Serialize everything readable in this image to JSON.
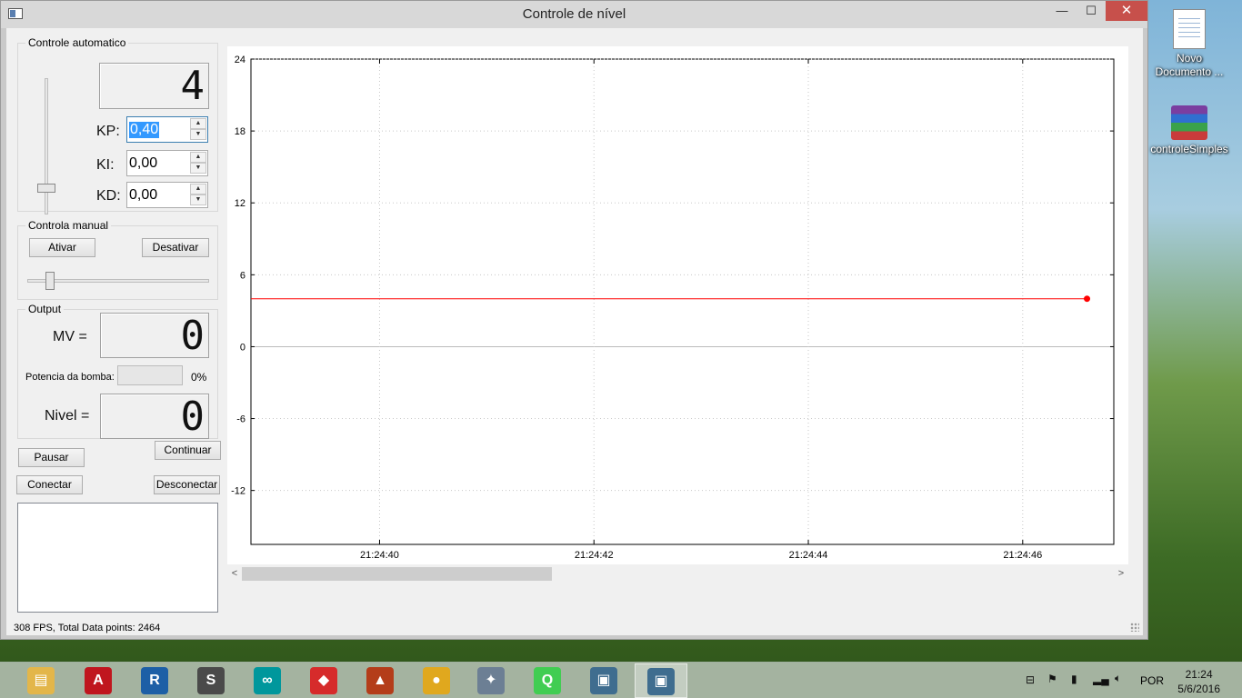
{
  "window": {
    "title": "Controle de nível",
    "minimize": "—",
    "maximize": "☐",
    "close": "✕"
  },
  "auto": {
    "title": "Controle automatico",
    "setpoint_display": "4",
    "kp_label": "KP:",
    "kp_value": "0,40",
    "ki_label": "KI:",
    "ki_value": "0,00",
    "kd_label": "KD:",
    "kd_value": "0,00"
  },
  "manual": {
    "title": "Controla manual",
    "activate": "Ativar",
    "deactivate": "Desativar"
  },
  "output": {
    "title": "Output",
    "mv_label": "MV =",
    "mv_value": "0",
    "pump_label": "Potencia da bomba:",
    "pump_percent": "0%",
    "level_label": "Nivel =",
    "level_value": "0"
  },
  "buttons": {
    "pause": "Pausar",
    "continue": "Continuar",
    "connect": "Conectar",
    "disconnect": "Desconectar"
  },
  "status": "308 FPS, Total Data points: 2464",
  "chart_data": {
    "type": "line",
    "y_ticks": [
      24,
      18,
      12,
      6,
      0,
      -6,
      -12
    ],
    "ylim": [
      -16.5,
      24
    ],
    "x_ticks": [
      "21:24:40",
      "21:24:42",
      "21:24:44",
      "21:24:46"
    ],
    "series": [
      {
        "color": "#ff0000",
        "x_range": [
          "21:24:38.8",
          "21:24:46.6"
        ],
        "y": 4
      }
    ]
  },
  "desktop": {
    "icon1": "Novo Documento ...",
    "icon2": "controleSimples"
  },
  "tray": {
    "lang": "POR",
    "time": "21:24",
    "date": "5/6/2016"
  },
  "taskbar": [
    {
      "name": "file-explorer",
      "color": "#e3b64a",
      "glyph": "▤"
    },
    {
      "name": "autocad",
      "color": "#c0161e",
      "glyph": "A"
    },
    {
      "name": "revit",
      "color": "#1d5fa6",
      "glyph": "R"
    },
    {
      "name": "sublime",
      "color": "#4a4a4a",
      "glyph": "S"
    },
    {
      "name": "arduino",
      "color": "#00979c",
      "glyph": "∞"
    },
    {
      "name": "sketchup",
      "color": "#d62b2b",
      "glyph": "◆"
    },
    {
      "name": "matlab",
      "color": "#b43d1a",
      "glyph": "▲"
    },
    {
      "name": "chrome",
      "color": "#e0a81e",
      "glyph": "●"
    },
    {
      "name": "satellite-app",
      "color": "#6c7f94",
      "glyph": "✦"
    },
    {
      "name": "qt-creator",
      "color": "#41cd52",
      "glyph": "Q"
    },
    {
      "name": "app-window-1",
      "color": "#3f6d8f",
      "glyph": "▣"
    },
    {
      "name": "app-window-2",
      "color": "#3f6d8f",
      "glyph": "▣"
    }
  ]
}
